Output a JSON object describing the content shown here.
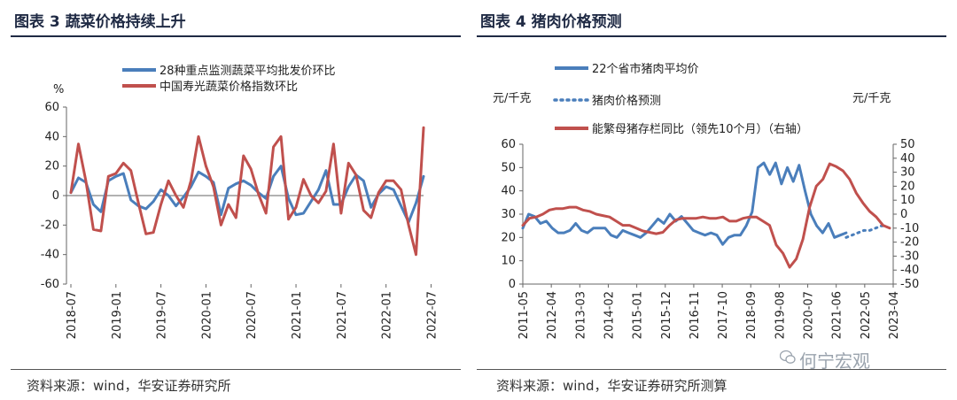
{
  "charts": {
    "left_title": "图表 3  蔬菜价格持续上升",
    "right_title": "图表 4  猪肉价格预测",
    "left_source": "资料来源：wind，华安证券研究所",
    "right_source": "资料来源：wind，华安证券研究所测算",
    "watermark": "何宁宏观"
  },
  "chart_data": [
    {
      "type": "line",
      "title": "蔬菜价格持续上升",
      "ylabel": "%",
      "ylim": [
        -60,
        60
      ],
      "yticks": [
        60,
        40,
        20,
        0,
        -20,
        -40,
        -60
      ],
      "xlabels": [
        "2018-07",
        "2019-01",
        "2019-07",
        "2020-01",
        "2020-07",
        "2021-01",
        "2021-07",
        "2022-01",
        "2022-07"
      ],
      "colors": {
        "s1": "#4a7ebb",
        "s2": "#c0504d"
      },
      "series": [
        {
          "name": "28种重点监测蔬菜平均批发价环比",
          "values": [
            2,
            12,
            9,
            -6,
            -11,
            10,
            13,
            15,
            -3,
            -7,
            -9,
            -4,
            4,
            0,
            -7,
            -1,
            6,
            16,
            13,
            9,
            -13,
            5,
            8,
            10,
            7,
            2,
            -2,
            13,
            20,
            -2,
            -13,
            -12,
            -4,
            4,
            17,
            -6,
            -6,
            6,
            14,
            10,
            -8,
            1,
            6,
            4,
            -7,
            -18,
            -5,
            13
          ]
        },
        {
          "name": "中国寿光蔬菜价格指数环比",
          "values": [
            2,
            35,
            10,
            -23,
            -24,
            13,
            15,
            22,
            17,
            -5,
            -26,
            -25,
            -6,
            10,
            0,
            -8,
            10,
            40,
            20,
            6,
            -20,
            -6,
            -15,
            27,
            18,
            1,
            -12,
            33,
            40,
            -16,
            -8,
            11,
            0,
            -5,
            3,
            35,
            -12,
            22,
            14,
            -10,
            -15,
            2,
            10,
            10,
            4,
            -20,
            -40,
            46
          ]
        }
      ]
    },
    {
      "type": "line",
      "title": "猪肉价格预测",
      "ylabel_left": "元/千克",
      "ylabel_right": "元/千克",
      "ylim_left": [
        0,
        60
      ],
      "yticks_left": [
        60,
        50,
        40,
        30,
        20,
        10,
        0
      ],
      "ylim_right": [
        -50,
        50
      ],
      "yticks_right": [
        50,
        40,
        30,
        20,
        10,
        0,
        -10,
        -20,
        -30,
        -40,
        -50
      ],
      "xlabels": [
        "2011-05",
        "2012-04",
        "2013-03",
        "2014-02",
        "2015-01",
        "2015-12",
        "2016-11",
        "2017-10",
        "2018-09",
        "2019-08",
        "2020-07",
        "2021-06",
        "2022-05",
        "2023-04"
      ],
      "colors": {
        "s1": "#4a7ebb",
        "s2": "#4a7ebb",
        "s3": "#c0504d"
      },
      "series": [
        {
          "name": "22个省市猪肉平均价",
          "axis": "left",
          "style": "solid",
          "values": [
            24,
            30,
            29,
            26,
            27,
            24,
            22,
            22,
            23,
            26,
            23,
            22,
            24,
            24,
            24,
            21,
            20,
            23,
            22,
            21,
            20,
            22,
            25,
            28,
            26,
            30,
            27,
            29,
            26,
            23,
            22,
            21,
            22,
            21,
            17,
            20,
            21,
            21,
            25,
            31,
            50,
            52,
            47,
            52,
            43,
            50,
            44,
            51,
            40,
            30,
            25,
            22,
            26,
            20,
            21,
            22
          ]
        },
        {
          "name": "猪肉价格预测",
          "axis": "left",
          "style": "dotted",
          "values": [
            20,
            21,
            22,
            23,
            23,
            24,
            25,
            25
          ]
        },
        {
          "name": "能繁母猪存栏同比（领先10个月）（右轴）",
          "axis": "right",
          "style": "solid",
          "values": [
            -8,
            -3,
            -2,
            0,
            3,
            4,
            4,
            5,
            5,
            3,
            2,
            0,
            -1,
            -2,
            -5,
            -8,
            -8,
            -10,
            -12,
            -13,
            -14,
            -13,
            -8,
            -4,
            -3,
            -3,
            -3,
            -2,
            -3,
            -3,
            -2,
            -5,
            -5,
            -3,
            -2,
            -2,
            -5,
            -8,
            -22,
            -28,
            -38,
            -32,
            -18,
            5,
            20,
            25,
            36,
            34,
            31,
            25,
            15,
            8,
            2,
            -2,
            -8,
            -10
          ]
        }
      ]
    }
  ]
}
